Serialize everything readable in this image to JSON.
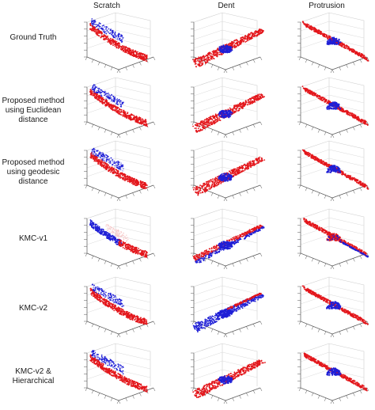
{
  "figure": {
    "columns": [
      "Scratch",
      "Dent",
      "Protrusion"
    ],
    "rows": [
      {
        "label_lines": [
          "Ground Truth"
        ]
      },
      {
        "label_lines": [
          "Proposed method",
          "using Euclidean",
          "distance"
        ]
      },
      {
        "label_lines": [
          "Proposed method",
          "using geodesic",
          "distance"
        ]
      },
      {
        "label_lines": [
          "KMC-v1"
        ]
      },
      {
        "label_lines": [
          "KMC-v2"
        ]
      },
      {
        "label_lines": [
          "KMC-v2 &",
          "Hierarchical"
        ]
      }
    ],
    "colors": {
      "surface": "#e3161b",
      "defect": "#1f1fd6",
      "defect_light": "#ffffff",
      "axis": "#555555",
      "grid": "#cfcfcf"
    },
    "panels": {
      "scratch": [
        {
          "band": "red",
          "patch": "blue"
        },
        {
          "band": "red",
          "patch": "blue"
        },
        {
          "band": "red",
          "patch": "blue"
        },
        {
          "band": "mixed-blue-left",
          "patch": "red"
        },
        {
          "band": "red",
          "patch": "blue"
        },
        {
          "band": "red",
          "patch": "blue"
        }
      ],
      "dent": [
        {
          "plane": "red",
          "blob": "blue"
        },
        {
          "plane": "red",
          "blob": "blue"
        },
        {
          "plane": "red",
          "blob": "blue"
        },
        {
          "plane": "blue-lower-red-upper",
          "blob": "blue"
        },
        {
          "plane": "blue-lower",
          "blob": "blue"
        },
        {
          "plane": "red",
          "blob": "blue"
        }
      ],
      "protrusion": [
        {
          "plane": "red",
          "blob": "blue"
        },
        {
          "plane": "red",
          "blob": "blue"
        },
        {
          "plane": "red",
          "blob": "blue"
        },
        {
          "plane": "red-blue-edge",
          "blob": "red"
        },
        {
          "plane": "red",
          "blob": "blue"
        },
        {
          "plane": "red",
          "blob": "blue"
        }
      ]
    }
  }
}
